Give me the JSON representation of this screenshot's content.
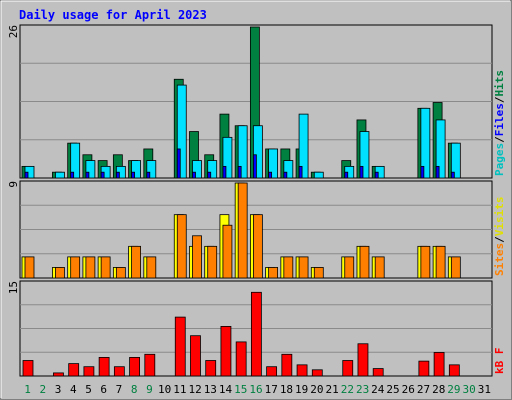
{
  "chart_data": {
    "type": "bar",
    "title": "Daily usage for April 2023",
    "categories": [
      "1",
      "2",
      "3",
      "4",
      "5",
      "6",
      "7",
      "8",
      "9",
      "10",
      "11",
      "12",
      "13",
      "14",
      "15",
      "16",
      "17",
      "18",
      "19",
      "20",
      "21",
      "22",
      "23",
      "24",
      "25",
      "26",
      "27",
      "28",
      "29",
      "30",
      "31"
    ],
    "weekend_days": [
      "1",
      "2",
      "8",
      "9",
      "15",
      "16",
      "22",
      "23",
      "29",
      "30"
    ],
    "panels": [
      {
        "id": "hits-files-pages",
        "ymax": 26,
        "ymax_label": "26",
        "legend": [
          "Pages",
          "/",
          "Files",
          "/",
          "Hits"
        ],
        "series": [
          {
            "name": "Hits",
            "color": "#008040",
            "values": [
              2,
              0,
              1,
              6,
              4,
              3,
              4,
              3,
              5,
              0,
              17,
              8,
              4,
              11,
              9,
              26,
              5,
              5,
              5,
              1,
              0,
              3,
              10,
              2,
              0,
              0,
              12,
              13,
              6,
              0,
              0
            ]
          },
          {
            "name": "Files",
            "color": "#00e0ff",
            "values": [
              2,
              0,
              1,
              6,
              3,
              2,
              2,
              3,
              3,
              0,
              16,
              3,
              3,
              7,
              9,
              9,
              5,
              3,
              11,
              1,
              0,
              2,
              8,
              2,
              0,
              0,
              12,
              10,
              6,
              0,
              0
            ]
          },
          {
            "name": "Pages",
            "color": "#0000ff",
            "values": [
              1,
              0,
              0,
              1,
              1,
              1,
              1,
              1,
              1,
              0,
              5,
              1,
              1,
              2,
              2,
              4,
              1,
              1,
              2,
              0,
              0,
              1,
              2,
              1,
              0,
              0,
              2,
              2,
              1,
              0,
              0
            ]
          }
        ]
      },
      {
        "id": "visits-sites",
        "ymax": 9,
        "ymax_label": "9",
        "legend": [
          "Sites",
          "/",
          "Visits"
        ],
        "series": [
          {
            "name": "Visits",
            "color": "#ffff00",
            "values": [
              2,
              0,
              1,
              2,
              2,
              2,
              1,
              3,
              2,
              0,
              6,
              3,
              3,
              6,
              9,
              6,
              1,
              2,
              2,
              1,
              0,
              2,
              3,
              2,
              0,
              0,
              3,
              3,
              2,
              0,
              0
            ]
          },
          {
            "name": "Sites",
            "color": "#ff8000",
            "values": [
              2,
              0,
              1,
              2,
              2,
              2,
              1,
              3,
              2,
              0,
              6,
              4,
              3,
              5,
              9,
              6,
              1,
              2,
              2,
              1,
              0,
              2,
              3,
              2,
              0,
              0,
              3,
              3,
              2,
              0,
              0
            ]
          }
        ]
      },
      {
        "id": "kbytes",
        "ymax": 15,
        "ymax_label": "15",
        "legend": [
          "kB",
          "F"
        ],
        "series": [
          {
            "name": "kB F",
            "color": "#ff0000",
            "values": [
              2.5,
              0,
              0.5,
              2,
              1.5,
              3,
              1.5,
              3,
              3.5,
              0,
              9.5,
              6.5,
              2.5,
              8,
              5.5,
              13.5,
              1.5,
              3.5,
              1.8,
              1,
              0,
              2.5,
              5.2,
              1.2,
              0,
              0,
              2.4,
              3.8,
              1.8,
              0,
              0
            ]
          }
        ]
      }
    ]
  },
  "colors": {
    "background": "#c0c0c0",
    "plot_background": "#c0c0c0",
    "grid": "#8a8a8a",
    "title": "#0000ff",
    "axis_text": "#000000",
    "weekday_label": "#000000",
    "weekend_label": "#008040",
    "legend": {
      "Pages": "#00c0c0",
      "/": "#000000",
      "Files": "#0000ff",
      "Hits": "#008040",
      "Sites": "#ff8000",
      "Visits": "#e0e000",
      "kB": "#ff0000",
      "F": "#ff0000"
    }
  }
}
